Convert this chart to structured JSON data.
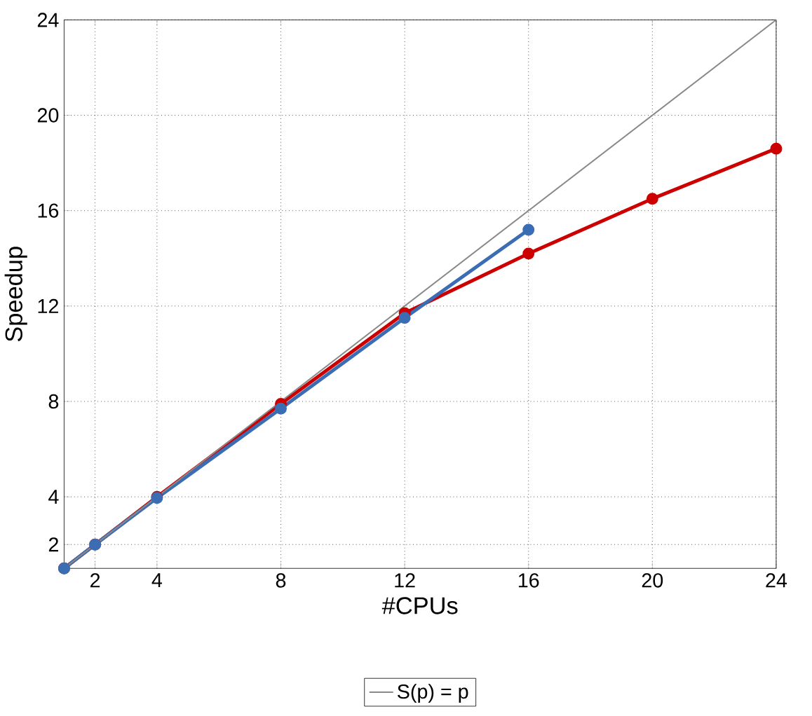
{
  "chart_data": {
    "type": "line",
    "xlabel": "#CPUs",
    "ylabel": "Speedup",
    "xlim": [
      1,
      24
    ],
    "ylim": [
      1,
      24
    ],
    "xticks": [
      2,
      4,
      8,
      12,
      16,
      20,
      24
    ],
    "yticks": [
      2,
      4,
      8,
      12,
      16,
      20,
      24
    ],
    "grid": true,
    "legend": "bottom",
    "marker": "circle",
    "line_style": "solid",
    "series": [
      {
        "color": "#cc0000",
        "x": [
          1,
          2,
          4,
          8,
          12,
          16,
          20,
          24
        ],
        "values": [
          1,
          2,
          4,
          7.9,
          11.7,
          14.2,
          16.5,
          18.6
        ]
      },
      {
        "color": "#3a6db3",
        "x": [
          1,
          2,
          4,
          8,
          12,
          16
        ],
        "values": [
          1,
          2,
          3.95,
          7.7,
          11.5,
          15.2
        ]
      },
      {
        "name": "S(p) = p",
        "color": "#888888",
        "marker": "none",
        "x": [
          1,
          24
        ],
        "values": [
          1,
          24
        ]
      }
    ]
  }
}
